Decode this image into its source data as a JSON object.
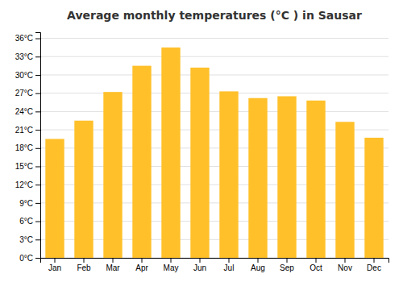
{
  "chart_data": {
    "type": "bar",
    "title": "Average monthly temperatures (°C ) in Sausar",
    "categories": [
      "Jan",
      "Feb",
      "Mar",
      "Apr",
      "May",
      "Jun",
      "Jul",
      "Aug",
      "Sep",
      "Oct",
      "Nov",
      "Dec"
    ],
    "values": [
      19.5,
      22.5,
      27.2,
      31.5,
      34.5,
      31.2,
      27.3,
      26.2,
      26.5,
      25.8,
      22.3,
      19.7
    ],
    "color": "#FFC02A",
    "ylim": [
      0,
      37
    ],
    "yticks": [
      {
        "value": 0,
        "label": "0°C"
      },
      {
        "value": 3,
        "label": "3°C"
      },
      {
        "value": 6,
        "label": "6°C"
      },
      {
        "value": 9,
        "label": "9°C"
      },
      {
        "value": 12,
        "label": "12°C"
      },
      {
        "value": 15,
        "label": "15°C"
      },
      {
        "value": 18,
        "label": "18°C"
      },
      {
        "value": 21,
        "label": "21°C"
      },
      {
        "value": 24,
        "label": "24°C"
      },
      {
        "value": 27,
        "label": "27°C"
      },
      {
        "value": 30,
        "label": "30°C"
      },
      {
        "value": 33,
        "label": "33°C"
      },
      {
        "value": 36,
        "label": "36°C"
      }
    ],
    "grid": true
  }
}
